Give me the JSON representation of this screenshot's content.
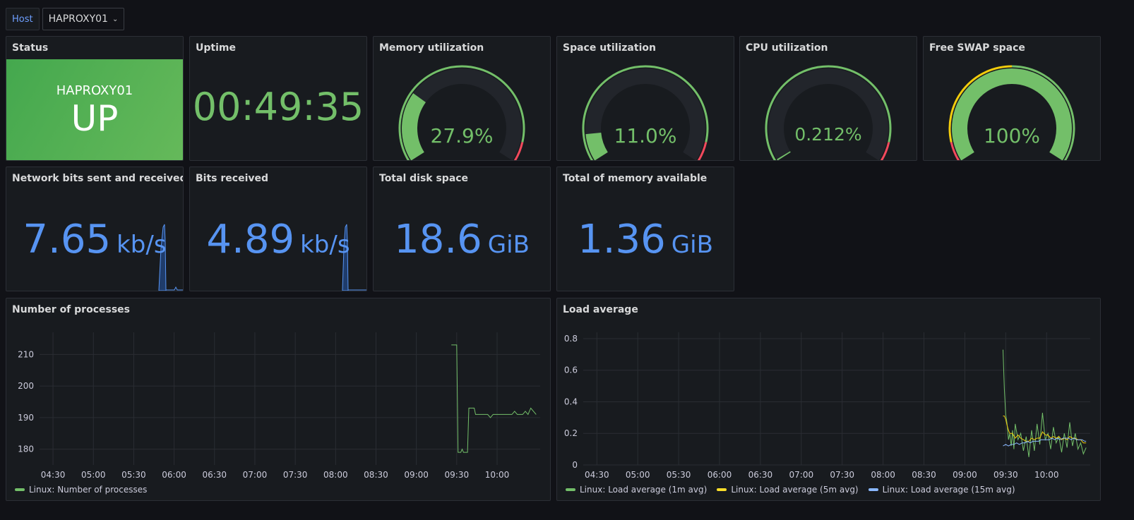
{
  "topbar": {
    "var_label": "Host",
    "var_value": "HAPROXY01"
  },
  "colors": {
    "green": "#73bf69",
    "red": "#f2495c",
    "yellow": "#fade2a",
    "orange": "#f2cc0c",
    "blue": "#5794f2",
    "lightblue": "#8ab8ff"
  },
  "status": {
    "title": "Status",
    "host": "HAPROXY01",
    "state": "UP"
  },
  "uptime": {
    "title": "Uptime",
    "value": "00:49:35"
  },
  "gauges": [
    {
      "title": "Memory utilization",
      "display": "27.9%",
      "value": 27.9
    },
    {
      "title": "Space utilization",
      "display": "11.0%",
      "value": 11.0
    },
    {
      "title": "CPU utilization",
      "display": "0.212%",
      "value": 0.212
    },
    {
      "title": "Free SWAP space",
      "display": "100%",
      "value": 100
    }
  ],
  "network": {
    "title": "Network bits sent and received",
    "value": "7.65",
    "unit": "kb/s"
  },
  "bits_received": {
    "title": "Bits received",
    "value": "4.89",
    "unit": "kb/s"
  },
  "disk": {
    "title": "Total disk space",
    "value": "18.6",
    "unit": "GiB"
  },
  "memory_available": {
    "title": "Total of memory available",
    "value": "1.36",
    "unit": "GiB"
  },
  "processes": {
    "title": "Number of processes",
    "legend": "Linux: Number of processes"
  },
  "load": {
    "title": "Load average",
    "legend": [
      "Linux: Load average (1m avg)",
      "Linux: Load average (5m avg)",
      "Linux: Load average (15m avg)"
    ]
  },
  "chart_data": [
    {
      "type": "line",
      "title": "Number of processes",
      "x_ticks": [
        "04:30",
        "05:00",
        "05:30",
        "06:00",
        "06:30",
        "07:00",
        "07:30",
        "08:00",
        "08:30",
        "09:00",
        "09:30",
        "10:00"
      ],
      "y_ticks": [
        180,
        190,
        200,
        210
      ],
      "ylim": [
        175,
        217
      ],
      "xlim_minutes": [
        260,
        632
      ],
      "series": [
        {
          "name": "Linux: Number of processes",
          "x": [
            566,
            570,
            571,
            573,
            574,
            575,
            578,
            579,
            580,
            582,
            583,
            584,
            586,
            588,
            590,
            592,
            593,
            595,
            597,
            599,
            601,
            603,
            605,
            607,
            609,
            611,
            613,
            615,
            617,
            619,
            621,
            623,
            625,
            627,
            629
          ],
          "y": [
            213,
            213,
            179,
            179,
            180,
            179,
            179,
            193,
            193,
            193,
            193,
            191,
            191,
            191,
            191,
            191,
            191,
            190,
            191,
            191,
            191,
            191,
            191,
            191,
            191,
            191,
            192,
            191,
            191,
            191,
            192,
            191,
            193,
            192,
            191
          ]
        }
      ]
    },
    {
      "type": "line",
      "title": "Load average",
      "x_ticks": [
        "04:30",
        "05:00",
        "05:30",
        "06:00",
        "06:30",
        "07:00",
        "07:30",
        "08:00",
        "08:30",
        "09:00",
        "09:30",
        "10:00"
      ],
      "y_ticks": [
        0,
        0.2,
        0.4,
        0.6,
        0.8
      ],
      "ylim": [
        0,
        0.84
      ],
      "xlim_minutes": [
        260,
        632
      ],
      "series": [
        {
          "name": "Linux: Load average (1m avg)",
          "x": [
            568,
            569,
            570,
            571,
            572,
            573,
            574,
            575,
            576,
            577,
            579,
            581,
            583,
            585,
            587,
            589,
            591,
            593,
            595,
            597,
            599,
            601,
            603,
            605,
            607,
            609,
            611,
            613,
            615,
            617,
            619,
            621,
            623,
            625,
            627,
            629
          ],
          "y": [
            0.73,
            0.48,
            0.32,
            0.26,
            0.16,
            0.2,
            0.12,
            0.22,
            0.1,
            0.26,
            0.16,
            0.2,
            0.09,
            0.18,
            0.05,
            0.22,
            0.09,
            0.26,
            0.13,
            0.33,
            0.16,
            0.2,
            0.1,
            0.24,
            0.14,
            0.18,
            0.08,
            0.2,
            0.11,
            0.27,
            0.12,
            0.2,
            0.1,
            0.14,
            0.07,
            0.11
          ]
        },
        {
          "name": "Linux: Load average (5m avg)",
          "x": [
            568,
            569,
            570,
            571,
            572,
            573,
            575,
            577,
            579,
            581,
            583,
            585,
            587,
            589,
            591,
            593,
            595,
            597,
            599,
            601,
            603,
            605,
            607,
            609,
            611,
            613,
            615,
            617,
            619,
            621,
            623,
            625,
            627,
            629
          ],
          "y": [
            0.31,
            0.31,
            0.29,
            0.25,
            0.22,
            0.2,
            0.2,
            0.17,
            0.19,
            0.17,
            0.16,
            0.15,
            0.15,
            0.17,
            0.16,
            0.17,
            0.17,
            0.21,
            0.19,
            0.19,
            0.17,
            0.18,
            0.17,
            0.18,
            0.16,
            0.17,
            0.16,
            0.18,
            0.17,
            0.17,
            0.16,
            0.16,
            0.14,
            0.14
          ]
        },
        {
          "name": "Linux: Load average (15m avg)",
          "x": [
            568,
            570,
            572,
            574,
            576,
            578,
            580,
            582,
            584,
            586,
            588,
            590,
            592,
            594,
            596,
            598,
            600,
            602,
            604,
            606,
            608,
            610,
            612,
            614,
            616,
            618,
            620,
            622,
            624,
            626,
            628,
            629
          ],
          "y": [
            0.12,
            0.13,
            0.12,
            0.13,
            0.13,
            0.14,
            0.13,
            0.14,
            0.14,
            0.15,
            0.14,
            0.15,
            0.15,
            0.15,
            0.16,
            0.16,
            0.16,
            0.16,
            0.17,
            0.16,
            0.17,
            0.16,
            0.17,
            0.17,
            0.17,
            0.16,
            0.17,
            0.16,
            0.16,
            0.16,
            0.15,
            0.15
          ]
        }
      ]
    }
  ]
}
